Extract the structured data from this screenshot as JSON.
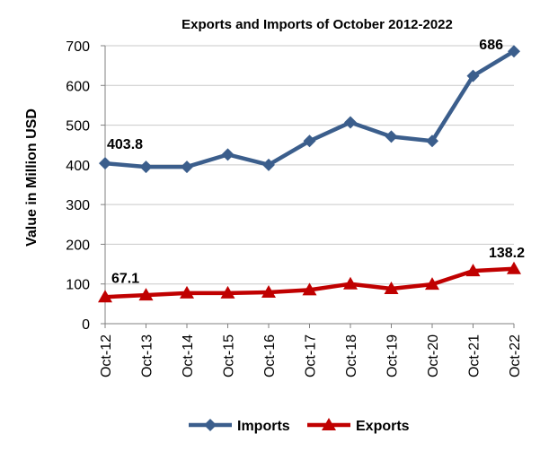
{
  "chart_data": {
    "type": "line",
    "title": "Exports and Imports of October 2012-2022",
    "xlabel": "",
    "ylabel": "Value in Million  USD",
    "categories": [
      "Oct-12",
      "Oct-13",
      "Oct-14",
      "Oct-15",
      "Oct-16",
      "Oct-17",
      "Oct-18",
      "Oct-19",
      "Oct-20",
      "Oct-21",
      "Oct-22"
    ],
    "ylim": [
      0,
      700
    ],
    "yticks": [
      "0",
      "100",
      "200",
      "300",
      "400",
      "500",
      "600",
      "700"
    ],
    "grid": true,
    "legend_position": "bottom",
    "series": [
      {
        "name": "Imports",
        "color": "#3B5E8C",
        "marker": "diamond",
        "values": [
          403.8,
          395,
          395,
          426,
          400,
          460,
          507,
          471,
          460,
          624,
          686
        ],
        "labels": [
          {
            "index": 0,
            "text": "403.8"
          },
          {
            "index": 10,
            "text": "686"
          }
        ]
      },
      {
        "name": "Exports",
        "color": "#C00000",
        "marker": "triangle",
        "values": [
          67.1,
          72,
          77,
          77,
          79,
          85,
          100,
          88,
          99,
          133,
          138.2
        ],
        "labels": [
          {
            "index": 0,
            "text": "67.1"
          },
          {
            "index": 10,
            "text": "138.2"
          }
        ]
      }
    ]
  }
}
